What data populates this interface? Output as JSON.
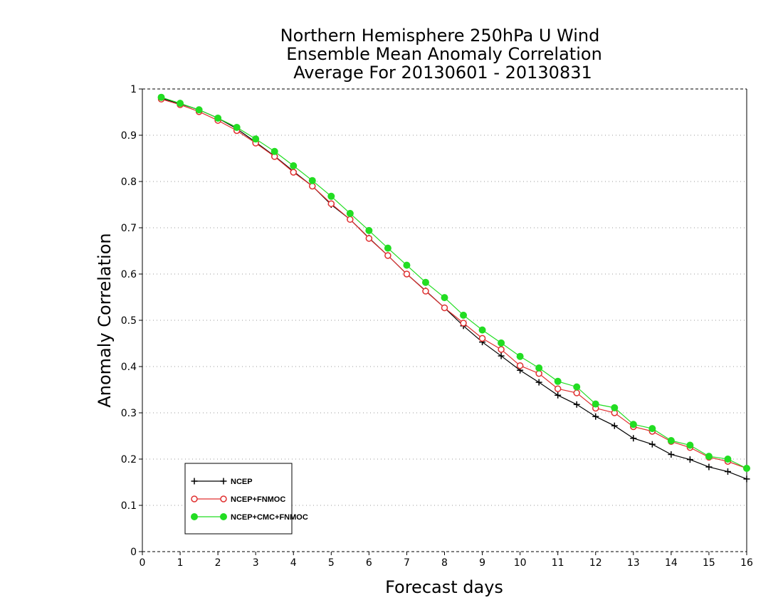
{
  "chart_data": {
    "type": "line",
    "title": [
      "Northern Hemisphere 250hPa U Wind",
      "Ensemble Mean Anomaly Correlation",
      "Average For 20130601 - 20130831"
    ],
    "xlabel": "Forecast days",
    "ylabel": "Anomaly Correlation",
    "xlim": [
      0,
      16
    ],
    "ylim": [
      0,
      1
    ],
    "x_ticks": [
      "0",
      "1",
      "2",
      "3",
      "4",
      "5",
      "6",
      "7",
      "8",
      "9",
      "10",
      "11",
      "12",
      "13",
      "14",
      "15",
      "16"
    ],
    "y_ticks": [
      "0",
      "0.1",
      "0.2",
      "0.3",
      "0.4",
      "0.5",
      "0.6",
      "0.7",
      "0.8",
      "0.9",
      "1"
    ],
    "grid": "horizontal dotted",
    "legend_position": "bottom-left",
    "x": [
      0.5,
      1,
      1.5,
      2,
      2.5,
      3,
      3.5,
      4,
      4.5,
      5,
      5.5,
      6,
      6.5,
      7,
      7.5,
      8,
      8.5,
      9,
      9.5,
      10,
      10.5,
      11,
      11.5,
      12,
      12.5,
      13,
      13.5,
      14,
      14.5,
      15,
      15.5,
      16
    ],
    "series": [
      {
        "name": "NCEP",
        "color": "#000000",
        "marker": "plus",
        "values": [
          0.98,
          0.968,
          0.955,
          0.937,
          0.914,
          0.885,
          0.855,
          0.822,
          0.79,
          0.75,
          0.718,
          0.678,
          0.64,
          0.6,
          0.564,
          0.527,
          0.488,
          0.453,
          0.423,
          0.392,
          0.366,
          0.338,
          0.318,
          0.292,
          0.272,
          0.245,
          0.232,
          0.21,
          0.199,
          0.183,
          0.173,
          0.157
        ]
      },
      {
        "name": "NCEP+FNMOC",
        "color": "#e03030",
        "marker": "open-circle",
        "values": [
          0.978,
          0.966,
          0.951,
          0.932,
          0.91,
          0.883,
          0.854,
          0.82,
          0.79,
          0.752,
          0.718,
          0.677,
          0.64,
          0.6,
          0.563,
          0.527,
          0.494,
          0.461,
          0.437,
          0.402,
          0.385,
          0.352,
          0.343,
          0.31,
          0.3,
          0.27,
          0.26,
          0.238,
          0.225,
          0.204,
          0.195,
          0.18
        ]
      },
      {
        "name": "NCEP+CMC+FNMOC",
        "color": "#22dd22",
        "marker": "filled-circle",
        "values": [
          0.982,
          0.969,
          0.955,
          0.937,
          0.917,
          0.892,
          0.865,
          0.834,
          0.802,
          0.768,
          0.731,
          0.694,
          0.656,
          0.619,
          0.582,
          0.549,
          0.511,
          0.479,
          0.451,
          0.422,
          0.397,
          0.368,
          0.356,
          0.319,
          0.311,
          0.275,
          0.266,
          0.24,
          0.23,
          0.206,
          0.2,
          0.18
        ]
      }
    ]
  }
}
